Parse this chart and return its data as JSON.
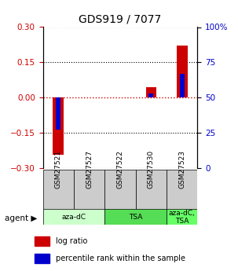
{
  "title": "GDS919 / 7077",
  "samples": [
    "GSM27521",
    "GSM27527",
    "GSM27522",
    "GSM27530",
    "GSM27523"
  ],
  "log_ratios": [
    -0.245,
    0.0,
    0.0,
    0.045,
    0.22
  ],
  "percentile_ranks": [
    27.0,
    50.0,
    50.0,
    53.0,
    67.0
  ],
  "ylim_left": [
    -0.3,
    0.3
  ],
  "ylim_right": [
    0,
    100
  ],
  "yticks_left": [
    -0.3,
    -0.15,
    0.0,
    0.15,
    0.3
  ],
  "yticks_right": [
    0,
    25,
    50,
    75,
    100
  ],
  "ytick_labels_right": [
    "0",
    "25",
    "50",
    "75",
    "100%"
  ],
  "red_color": "#cc0000",
  "blue_color": "#0000cc",
  "sample_row_color": "#cccccc",
  "agent_spans": [
    [
      0,
      2,
      "aza-dC",
      "#ccffcc"
    ],
    [
      2,
      4,
      "TSA",
      "#55dd55"
    ],
    [
      4,
      5,
      "aza-dC,\nTSA",
      "#66ff66"
    ]
  ],
  "legend_red": "log ratio",
  "legend_blue": "percentile rank within the sample"
}
